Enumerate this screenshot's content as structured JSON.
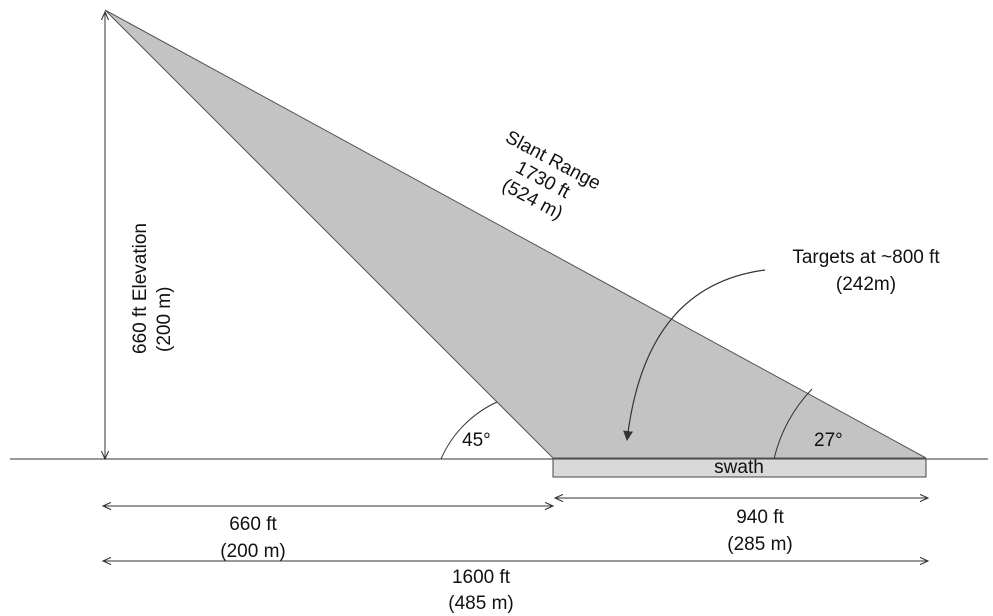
{
  "elevation": {
    "line1": "660 ft Elevation",
    "line2": "(200 m)"
  },
  "slant_range": {
    "line1": "Slant Range",
    "line2": "1730 ft",
    "line3": "(524 m)"
  },
  "targets": {
    "line1": "Targets at ~800 ft",
    "line2": "(242m)"
  },
  "angle_near": "45°",
  "angle_far": "27°",
  "swath_label": "swath",
  "dim_near": {
    "line1": "660 ft",
    "line2": "(200 m)"
  },
  "dim_swath": {
    "line1": "940 ft",
    "line2": "(285 m)"
  },
  "dim_total": {
    "line1": "1600 ft",
    "line2": "(485 m)"
  },
  "colors": {
    "beam": "#c3c3c3",
    "swath": "#d9d9d9",
    "stroke": "#333333"
  }
}
